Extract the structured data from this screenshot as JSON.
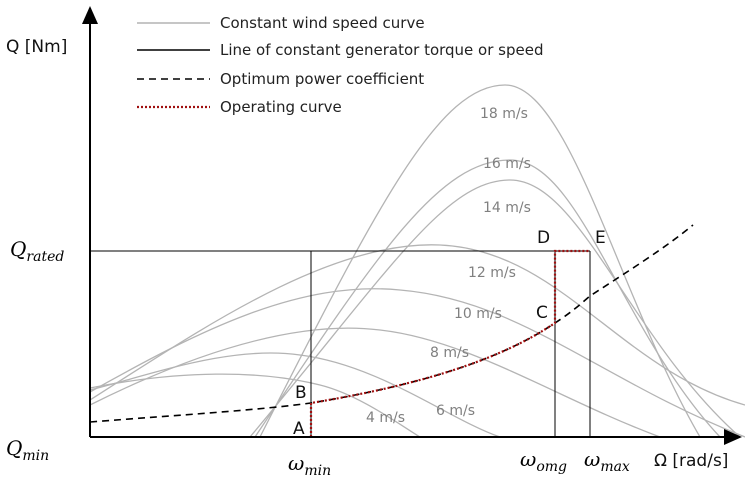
{
  "axes": {
    "y_label": "Q [Nm]",
    "x_label": "Ω [rad/s]",
    "q_rated": {
      "symbol": "Q",
      "subscript": "rated"
    },
    "q_min": {
      "symbol": "Q",
      "subscript": "min"
    },
    "omega_min": {
      "symbol": "ω",
      "subscript": "min"
    },
    "omega_omg": {
      "symbol": "ω",
      "subscript": "omg"
    },
    "omega_max": {
      "symbol": "ω",
      "subscript": "max"
    }
  },
  "legend": [
    "Constant wind speed curve",
    "Line of constant generator torque or speed",
    "Optimum power coefficient",
    "Operating curve"
  ],
  "curve_labels": [
    "18 m/s",
    "16 m/s",
    "14 m/s",
    "12 m/s",
    "10 m/s",
    "8 m/s",
    "6 m/s",
    "4 m/s"
  ],
  "points": [
    "A",
    "B",
    "C",
    "D",
    "E"
  ]
}
